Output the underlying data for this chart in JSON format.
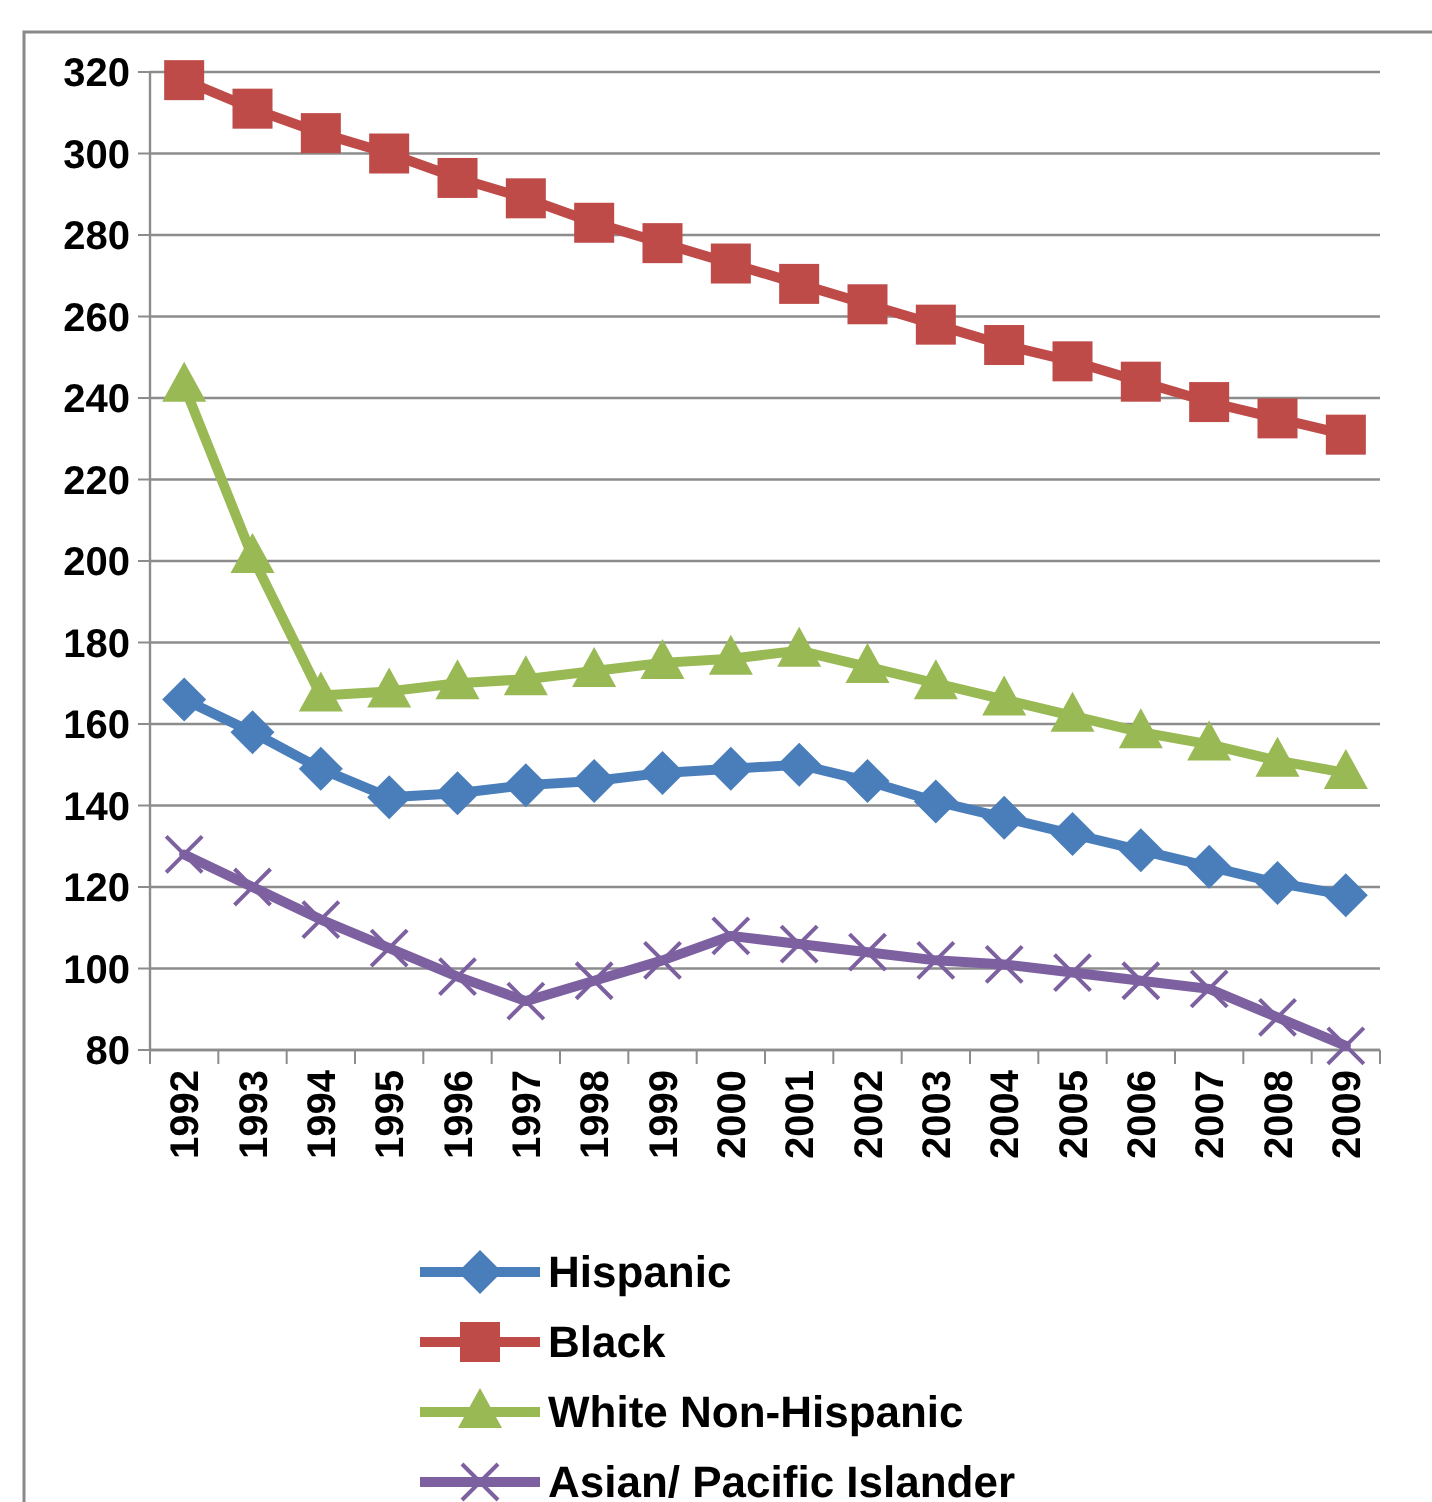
{
  "chart_data": {
    "type": "line",
    "categories": [
      "1992",
      "1993",
      "1994",
      "1995",
      "1996",
      "1997",
      "1998",
      "1999",
      "2000",
      "2001",
      "2002",
      "2003",
      "2004",
      "2005",
      "2006",
      "2007",
      "2008",
      "2009"
    ],
    "series": [
      {
        "name": "Hispanic",
        "color": "#4a7ebb",
        "marker": "diamond",
        "values": [
          166,
          158,
          149,
          142,
          143,
          145,
          146,
          148,
          149,
          150,
          146,
          141,
          137,
          133,
          129,
          125,
          121,
          118
        ]
      },
      {
        "name": "Black",
        "color": "#be4b48",
        "marker": "square",
        "values": [
          318,
          311,
          305,
          300,
          294,
          289,
          283,
          278,
          273,
          268,
          263,
          258,
          253,
          249,
          244,
          239,
          235,
          231
        ]
      },
      {
        "name": "White Non-Hispanic",
        "color": "#98b954",
        "marker": "triangle",
        "values": [
          243,
          201,
          167,
          168,
          170,
          171,
          173,
          175,
          176,
          178,
          174,
          170,
          166,
          162,
          158,
          155,
          151,
          148
        ]
      },
      {
        "name": "Asian/ Pacific Islander",
        "color": "#7d60a0",
        "marker": "cross",
        "values": [
          128,
          120,
          112,
          105,
          98,
          92,
          97,
          102,
          108,
          106,
          104,
          102,
          101,
          99,
          97,
          95,
          88,
          81
        ]
      }
    ],
    "ylim": [
      80,
      320
    ],
    "yticks": [
      80,
      100,
      120,
      140,
      160,
      180,
      200,
      220,
      240,
      260,
      280,
      300,
      320
    ],
    "grid": "y",
    "legend": "bottom"
  }
}
